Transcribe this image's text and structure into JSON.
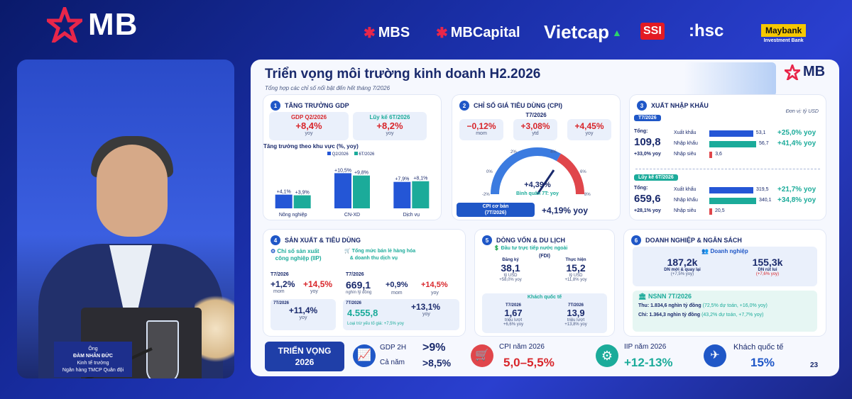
{
  "topbar": {
    "brand": "MB",
    "partners": [
      "MBS",
      "MBCapital",
      "Vietcap",
      "SSI",
      ":hsc",
      "Maybank"
    ],
    "maybank_sub": "Investment Bank"
  },
  "nameplate": {
    "line1": "Ông",
    "line2": "ĐÀM NHÂN ĐỨC",
    "line3": "Kinh tế trưởng",
    "line4": "Ngân hàng TMCP Quân đội"
  },
  "slide": {
    "title": "Triển vọng môi trường kinh doanh H2.2026",
    "subtitle": "Tổng hợp các chỉ số nổi bật đến hết tháng 7/2026",
    "brand": "MB",
    "page": "23",
    "gdp": {
      "num": "1",
      "title": "TĂNG TRƯỞNG GDP",
      "q_label": "GDP Q2/2026",
      "q_value": "+8,4%",
      "q_unit": "yoy",
      "c_label": "Lũy kế 6T/2026",
      "c_value": "+8,2%",
      "c_unit": "yoy",
      "chart_title": "Tăng trưởng theo khu vực (%, yoy)",
      "legend": [
        "Q2/2026",
        "6T/2026"
      ]
    },
    "cpi": {
      "num": "2",
      "title": "CHỈ SỐ GIÁ TIÊU DÙNG (CPI)",
      "period": "T7/2026",
      "mom_value": "−0,12%",
      "mom_label": "mom",
      "ytd_value": "+3,08%",
      "ytd_label": "ytd",
      "yoy_value": "+4,45%",
      "yoy_label": "yoy",
      "gauge_ticks": [
        "-2%",
        "0%",
        "2%",
        "4%",
        "6%",
        "8%"
      ],
      "gauge_value": "+4,39%",
      "gauge_label": "Bình quân 7T: yoy",
      "core_label1": "CPI cơ bản",
      "core_label2": "(7T/2026)",
      "core_value": "+4,19% yoy"
    },
    "trade": {
      "num": "3",
      "title": "XUẤT NHẬP KHẨU",
      "unit": "Đơn vị: tỷ USD",
      "p1": "T7/2026",
      "p1_total_label": "Tổng:",
      "p1_total": "109,8",
      "p1_yoy": "+33,0% yoy",
      "p2": "Lũy kế 6T/2026",
      "p2_total_label": "Tổng:",
      "p2_total": "659,6",
      "p2_yoy": "+28,1% yoy",
      "rows1": [
        {
          "label": "Xuất khẩu",
          "value": "53,1",
          "pct": "+25,0% yoy",
          "color": "#2456d6"
        },
        {
          "label": "Nhập khẩu",
          "value": "56,7",
          "pct": "+41,4% yoy",
          "color": "#1bab9a"
        },
        {
          "label": "Nhập siêu",
          "value": "3,6",
          "pct": "",
          "color": "#e0464b"
        }
      ],
      "rows2": [
        {
          "label": "Xuất khẩu",
          "value": "319,5",
          "pct": "+21,7% yoy",
          "color": "#2456d6"
        },
        {
          "label": "Nhập khẩu",
          "value": "340,1",
          "pct": "+34,8% yoy",
          "color": "#1bab9a"
        },
        {
          "label": "Nhập siêu",
          "value": "20,5",
          "pct": "",
          "color": "#e0464b"
        }
      ]
    },
    "prod": {
      "num": "4",
      "title": "SẢN XUẤT & TIÊU DÙNG",
      "iip_title1": "Chỉ số sản xuất",
      "iip_title2": "công nghiệp (IIP)",
      "iip_period": "T7/2026",
      "iip_mom": "+1,2%",
      "iip_mom_l": "mom",
      "iip_yoy": "+14,5%",
      "iip_yoy_l": "yoy",
      "iip_p2": "7T/2026",
      "iip_7t": "+11,4%",
      "iip_7t_l": "yoy",
      "retail_title1": "Tổng mức bán lẻ hàng hóa",
      "retail_title2": "& doanh thu dịch vụ",
      "retail_period": "T7/2026",
      "retail_value": "669,1",
      "retail_unit": "nghìn tỷ đồng",
      "retail_mom": "+0,9%",
      "retail_mom_l": "mom",
      "retail_yoy": "+14,5%",
      "retail_yoy_l": "yoy",
      "retail_p2": "7T/2026",
      "retail_7t_value": "4.555,8",
      "retail_7t_pct": "+13,1%",
      "retail_7t_l": "yoy",
      "retail_note": "Loại trừ yếu tố giá: +7,5% yoy"
    },
    "fdi": {
      "num": "5",
      "title": "DÒNG VỐN & DU LỊCH",
      "fdi_title": "Đầu tư trực tiếp nước ngoài",
      "fdi_sub": "(FDI)",
      "reg_label": "Đăng ký",
      "reg_value": "38,1",
      "reg_unit": "tỷ USD",
      "reg_yoy": "+58,0% yoy",
      "real_label": "Thực hiện",
      "real_value": "15,2",
      "real_unit": "tỷ USD",
      "real_yoy": "+11,8% yoy",
      "tour_title": "Khách quốc tế",
      "t7_label": "T7/2026",
      "t7_value": "1,67",
      "t7_unit": "triệu lượt",
      "t7_yoy": "+6,6% yoy",
      "t77_label": "7T/2026",
      "t77_value": "13,9",
      "t77_unit": "triệu lượt",
      "t77_yoy": "+13,8% yoy"
    },
    "biz": {
      "num": "6",
      "title": "DOANH NGHIỆP & NGÂN SÁCH",
      "dn_title": "Doanh nghiệp",
      "new_value": "187,2k",
      "new_label": "DN mới & quay lại",
      "new_yoy": "(+7,5% yoy)",
      "exit_value": "155,3k",
      "exit_label": "DN rút lui",
      "exit_yoy": "(+7,6% yoy)",
      "budget_title": "NSNN 7T/2026",
      "thu_label": "Thu: 1.834,6 nghìn tỷ đồng",
      "thu_pct": "(72,5% dự toán, +16,0% yoy)",
      "chi_label": "Chi: 1.364,3 nghìn tỷ đồng",
      "chi_pct": "(43,2% dự toán, +7,7% yoy)"
    },
    "outlook": {
      "title1": "TRIỂN VỌNG",
      "title2": "2026",
      "gdp_label": "GDP 2H",
      "gdp_value": ">9%",
      "year_label": "Cả năm",
      "year_value": ">8,5%",
      "cpi_label": "CPI năm 2026",
      "cpi_value": "5,0–5,5%",
      "iip_label": "IIP năm 2026",
      "iip_value": "+12-13%",
      "tour_label": "Khách quốc tế",
      "tour_value": "15%"
    }
  },
  "chart_data": {
    "type": "bar",
    "title": "Tăng trưởng theo khu vực (%, yoy)",
    "categories": [
      "Nông nghiệp",
      "CN-XD",
      "Dịch vụ"
    ],
    "series": [
      {
        "name": "Q2/2026",
        "values": [
          4.1,
          10.5,
          7.9
        ],
        "labels": [
          "+4,1%",
          "+10,5%",
          "+7,9%"
        ]
      },
      {
        "name": "6T/2026",
        "values": [
          3.9,
          9.8,
          8.1
        ],
        "labels": [
          "+3,9%",
          "+9,8%",
          "+8,1%"
        ]
      }
    ],
    "colors": [
      "#2456d6",
      "#1bab9a"
    ],
    "ylim": [
      0,
      11
    ]
  }
}
